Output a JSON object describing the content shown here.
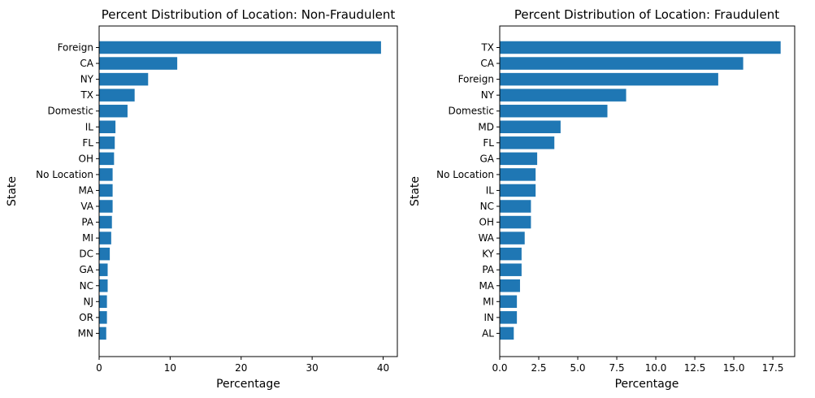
{
  "chart_data": [
    {
      "type": "bar",
      "orientation": "horizontal",
      "title": "Percent Distribution of Location: Non-Fraudulent",
      "xlabel": "Percentage",
      "ylabel": "State",
      "xlim": [
        0,
        42
      ],
      "xticks": [
        "0",
        "10",
        "20",
        "30",
        "40"
      ],
      "xtick_values": [
        0,
        10,
        20,
        30,
        40
      ],
      "color": "#1f77b4",
      "categories": [
        "Foreign",
        "CA",
        "NY",
        "TX",
        "Domestic",
        "IL",
        "FL",
        "OH",
        "No Location",
        "MA",
        "VA",
        "PA",
        "MI",
        "DC",
        "GA",
        "NC",
        "NJ",
        "OR",
        "MN"
      ],
      "values": [
        39.7,
        11.0,
        6.9,
        5.0,
        4.0,
        2.3,
        2.2,
        2.1,
        1.9,
        1.9,
        1.9,
        1.8,
        1.7,
        1.5,
        1.2,
        1.2,
        1.1,
        1.1,
        1.0
      ]
    },
    {
      "type": "bar",
      "orientation": "horizontal",
      "title": "Percent Distribution of Location: Fraudulent",
      "xlabel": "Percentage",
      "ylabel": "State",
      "xlim": [
        0,
        18.9
      ],
      "xticks": [
        "0.0",
        "2.5",
        "5.0",
        "7.5",
        "10.0",
        "12.5",
        "15.0",
        "17.5"
      ],
      "xtick_values": [
        0,
        2.5,
        5,
        7.5,
        10,
        12.5,
        15,
        17.5
      ],
      "color": "#1f77b4",
      "categories": [
        "TX",
        "CA",
        "Foreign",
        "NY",
        "Domestic",
        "MD",
        "FL",
        "GA",
        "No Location",
        "IL",
        "NC",
        "OH",
        "WA",
        "KY",
        "PA",
        "MA",
        "MI",
        "IN",
        "AL"
      ],
      "values": [
        18.0,
        15.6,
        14.0,
        8.1,
        6.9,
        3.9,
        3.5,
        2.4,
        2.3,
        2.3,
        2.0,
        2.0,
        1.6,
        1.4,
        1.4,
        1.3,
        1.1,
        1.1,
        0.9
      ]
    }
  ]
}
